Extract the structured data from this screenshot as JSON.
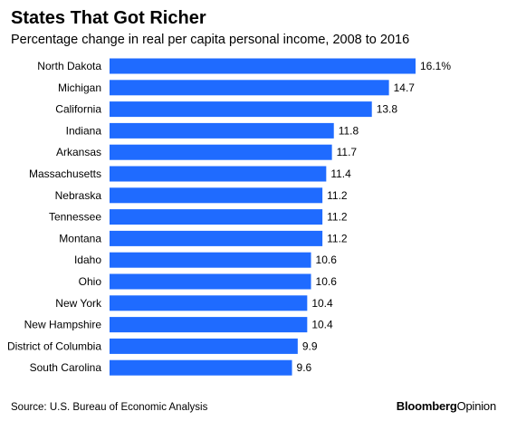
{
  "chart_data": {
    "type": "bar",
    "orientation": "horizontal",
    "title": "States That Got Richer",
    "subtitle": "Percentage change in real per capita personal income, 2008 to 2016",
    "categories": [
      "North Dakota",
      "Michigan",
      "California",
      "Indiana",
      "Arkansas",
      "Massachusetts",
      "Nebraska",
      "Tennessee",
      "Montana",
      "Idaho",
      "Ohio",
      "New York",
      "New Hampshire",
      "District of Columbia",
      "South Carolina"
    ],
    "values": [
      16.1,
      14.7,
      13.8,
      11.8,
      11.7,
      11.4,
      11.2,
      11.2,
      11.2,
      10.6,
      10.6,
      10.4,
      10.4,
      9.9,
      9.6
    ],
    "value_labels": [
      "16.1%",
      "14.7",
      "13.8",
      "11.8",
      "11.7",
      "11.4",
      "11.2",
      "11.2",
      "11.2",
      "10.6",
      "10.6",
      "10.4",
      "10.4",
      "9.9",
      "9.6"
    ],
    "xlim": [
      0,
      16.1
    ],
    "grid": false,
    "bar_color": "#1f6bff"
  },
  "source": "Source: U.S. Bureau of Economic Analysis",
  "brand": {
    "part1": "Bloomberg",
    "part2": "Opinion"
  }
}
